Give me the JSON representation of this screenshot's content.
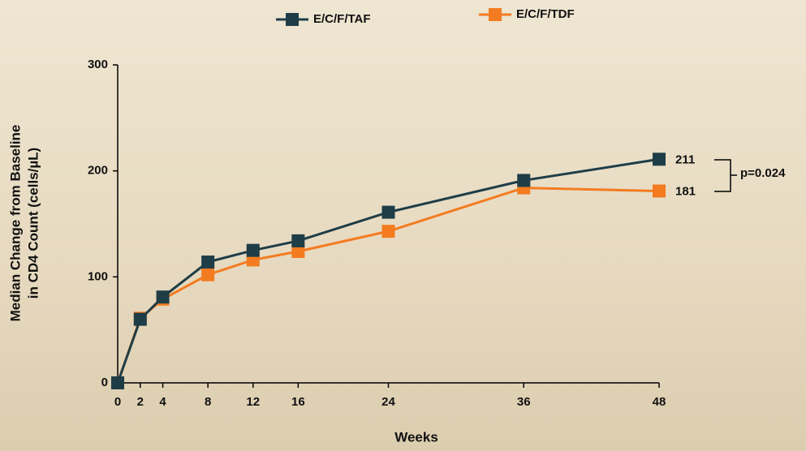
{
  "chart_data": {
    "type": "line",
    "y_label": [
      "Median Change from Baseline",
      "in CD4 Count (cells/µL)"
    ],
    "x_label": "Weeks",
    "x": [
      0,
      2,
      4,
      8,
      12,
      16,
      24,
      36,
      48
    ],
    "series": [
      {
        "name": "E/C/F/TAF",
        "color": "#1e3d47",
        "values": [
          0,
          60,
          81,
          114,
          125,
          134,
          161,
          191,
          211
        ]
      },
      {
        "name": "E/C/F/TDF",
        "color": "#f47b20",
        "values": [
          0,
          61,
          79,
          102,
          116,
          124,
          143,
          184,
          181
        ]
      }
    ],
    "xlim": [
      0,
      48
    ],
    "xticks": [
      0,
      2,
      4,
      8,
      12,
      16,
      24,
      36,
      48
    ],
    "ylim": [
      0,
      300
    ],
    "yticks": [
      0,
      100,
      200,
      300
    ],
    "annotation": "p=0.024"
  }
}
